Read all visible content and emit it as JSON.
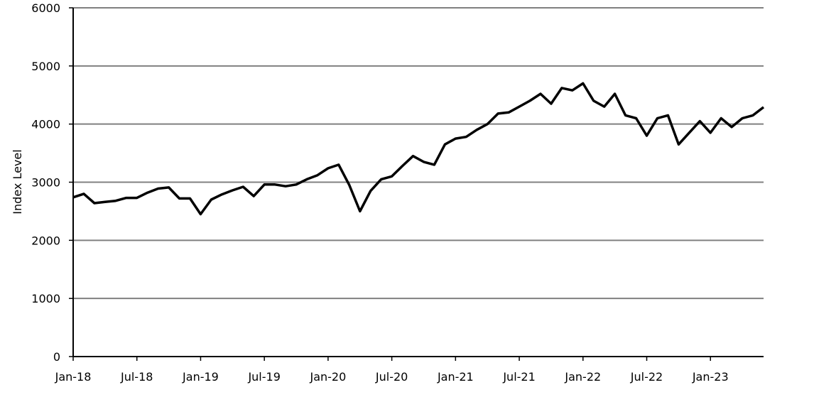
{
  "chart_data": {
    "type": "line",
    "y_label": "Index Level",
    "x": [
      "2018-01",
      "2018-02",
      "2018-03",
      "2018-04",
      "2018-05",
      "2018-06",
      "2018-07",
      "2018-08",
      "2018-09",
      "2018-10",
      "2018-11",
      "2018-12",
      "2019-01",
      "2019-02",
      "2019-03",
      "2019-04",
      "2019-05",
      "2019-06",
      "2019-07",
      "2019-08",
      "2019-09",
      "2019-10",
      "2019-11",
      "2019-12",
      "2020-01",
      "2020-02",
      "2020-03",
      "2020-04",
      "2020-05",
      "2020-06",
      "2020-07",
      "2020-08",
      "2020-09",
      "2020-10",
      "2020-11",
      "2020-12",
      "2021-01",
      "2021-02",
      "2021-03",
      "2021-04",
      "2021-05",
      "2021-06",
      "2021-07",
      "2021-08",
      "2021-09",
      "2021-10",
      "2021-11",
      "2021-12",
      "2022-01",
      "2022-02",
      "2022-03",
      "2022-04",
      "2022-05",
      "2022-06",
      "2022-07",
      "2022-08",
      "2022-09",
      "2022-10",
      "2022-11",
      "2022-12",
      "2023-01",
      "2023-02",
      "2023-03",
      "2023-04",
      "2023-05",
      "2023-06"
    ],
    "series": [
      {
        "name": "Index Level",
        "color": "#000000",
        "values": [
          2740,
          2800,
          2640,
          2660,
          2680,
          2730,
          2730,
          2820,
          2890,
          2910,
          2720,
          2720,
          2450,
          2700,
          2790,
          2860,
          2920,
          2760,
          2960,
          2960,
          2930,
          2960,
          3050,
          3120,
          3240,
          3300,
          2950,
          2500,
          2850,
          3050,
          3100,
          3280,
          3450,
          3350,
          3300,
          3650,
          3750,
          3780,
          3900,
          4000,
          4180,
          4200,
          4300,
          4400,
          4520,
          4350,
          4620,
          4580,
          4700,
          4400,
          4300,
          4520,
          4150,
          4100,
          3800,
          4100,
          4150,
          3650,
          3850,
          4050,
          3850,
          4100,
          3950,
          4100,
          4150,
          4290
        ]
      }
    ],
    "xlim": [
      "2018-01",
      "2023-06"
    ],
    "xticks": [
      {
        "value": "2018-01",
        "label": "Jan-18"
      },
      {
        "value": "2018-07",
        "label": "Jul-18"
      },
      {
        "value": "2019-01",
        "label": "Jan-19"
      },
      {
        "value": "2019-07",
        "label": "Jul-19"
      },
      {
        "value": "2020-01",
        "label": "Jan-20"
      },
      {
        "value": "2020-07",
        "label": "Jul-20"
      },
      {
        "value": "2021-01",
        "label": "Jan-21"
      },
      {
        "value": "2021-07",
        "label": "Jul-21"
      },
      {
        "value": "2022-01",
        "label": "Jan-22"
      },
      {
        "value": "2022-07",
        "label": "Jul-22"
      },
      {
        "value": "2023-01",
        "label": "Jan-23"
      }
    ],
    "ylim": [
      0,
      6000
    ],
    "yticks": [
      0,
      1000,
      2000,
      3000,
      4000,
      5000,
      6000
    ],
    "grid": true
  }
}
